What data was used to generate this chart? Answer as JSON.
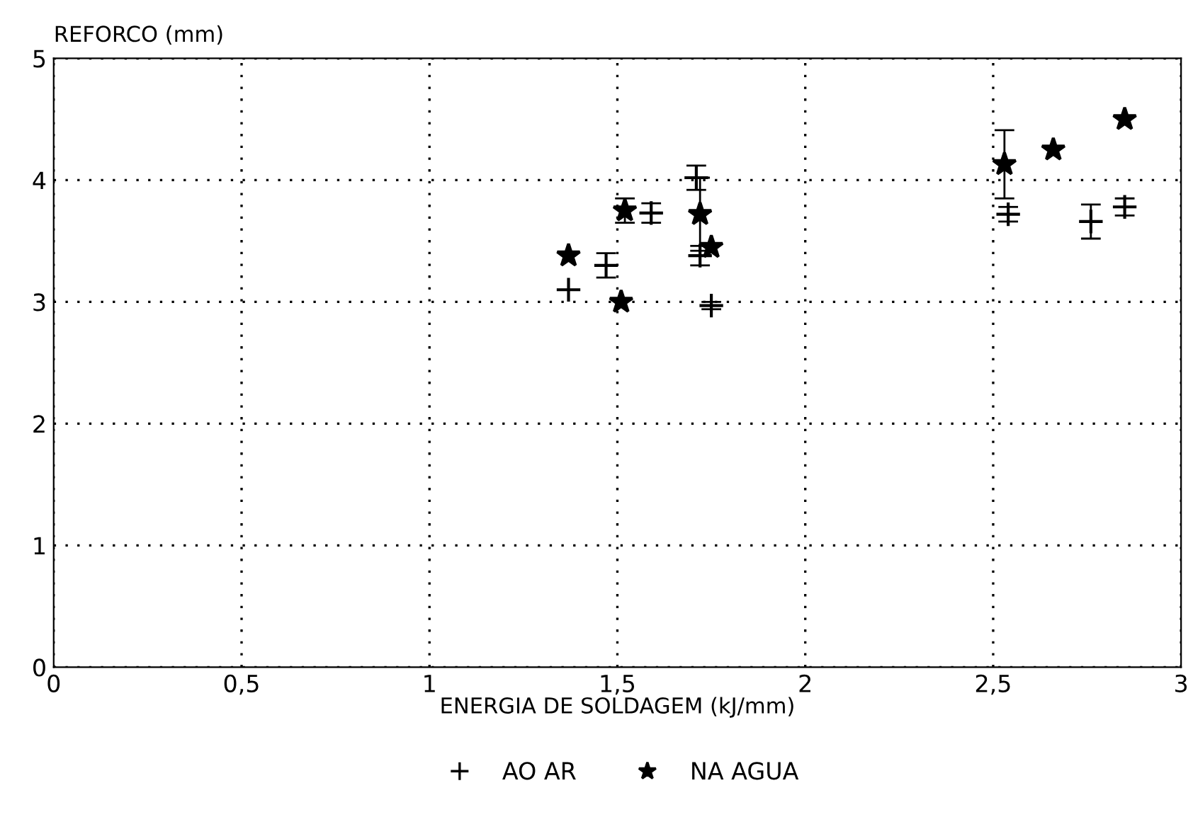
{
  "chart_data": {
    "type": "scatter",
    "ylabel": "REFORCO (mm)",
    "xlabel": "ENERGIA DE SOLDAGEM (kJ/mm)",
    "xlim": [
      0,
      3
    ],
    "xticks": [
      0,
      {
        "value": 0.5,
        "label": "0,5"
      },
      1,
      {
        "value": 1.5,
        "label": "1,5"
      },
      2,
      {
        "value": 2.5,
        "label": "2,5"
      },
      3
    ],
    "ylim": [
      0,
      5
    ],
    "yticks": [
      0,
      1,
      2,
      3,
      4,
      5
    ],
    "grid": true,
    "legend": "bottom",
    "series": [
      {
        "name": "AO AR",
        "color": "#000000",
        "marker": "cross",
        "x": [
          1.37,
          1.47,
          1.59,
          1.71,
          1.72,
          1.75,
          2.54,
          2.76,
          2.85
        ],
        "values": [
          3.1,
          3.3,
          3.73,
          4.02,
          3.38,
          2.97,
          3.72,
          3.66,
          3.78
        ],
        "errors": [
          null,
          0.1,
          0.08,
          0.1,
          0.08,
          0.03,
          0.06,
          0.14,
          0.07
        ]
      },
      {
        "name": "NA AGUA",
        "color": "#000000",
        "marker": "star",
        "x": [
          1.37,
          1.51,
          1.52,
          1.72,
          1.75,
          2.53,
          2.66,
          2.85
        ],
        "values": [
          3.38,
          3.0,
          3.75,
          3.72,
          3.45,
          4.13,
          4.25,
          4.5
        ],
        "errors": [
          null,
          null,
          0.1,
          0.3,
          null,
          0.28,
          null,
          null
        ]
      }
    ]
  }
}
